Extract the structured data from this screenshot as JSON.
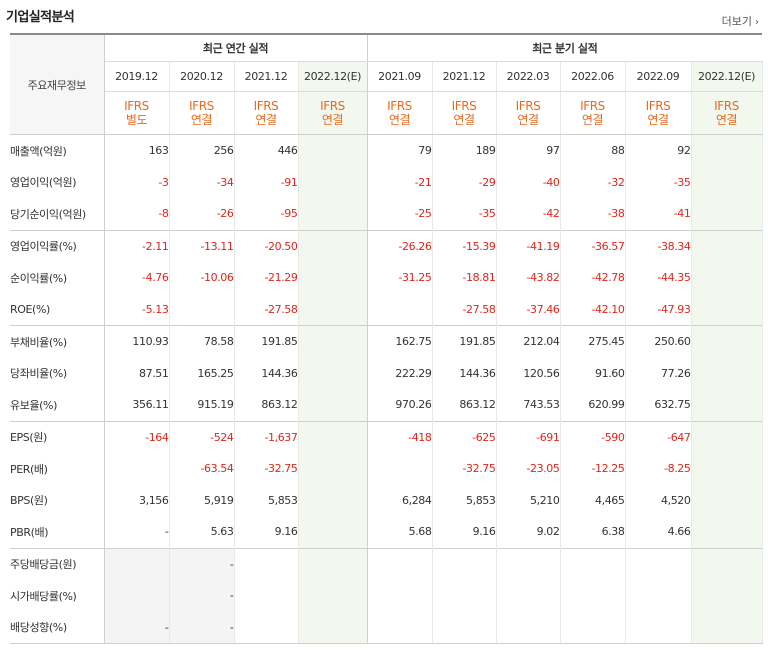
{
  "section_title": "기업실적분석",
  "more_label": "더보기",
  "header": {
    "corner_label": "주요재무정보",
    "annual_title": "최근 연간 실적",
    "quarterly_title": "최근 분기 실적",
    "periods": [
      "2019.12",
      "2020.12",
      "2021.12",
      "2022.12(E)",
      "2021.09",
      "2021.12",
      "2022.03",
      "2022.06",
      "2022.09",
      "2022.12(E)"
    ],
    "ifrs_top": [
      "IFRS",
      "IFRS",
      "IFRS",
      "IFRS",
      "IFRS",
      "IFRS",
      "IFRS",
      "IFRS",
      "IFRS",
      "IFRS"
    ],
    "ifrs_bottom": [
      "별도",
      "연결",
      "연결",
      "연결",
      "연결",
      "연결",
      "연결",
      "연결",
      "연결",
      "연결"
    ]
  },
  "rows": [
    {
      "label": "매출액(억원)",
      "values": [
        "163",
        "256",
        "446",
        "",
        "79",
        "189",
        "97",
        "88",
        "92",
        ""
      ]
    },
    {
      "label": "영업이익(억원)",
      "values": [
        "-3",
        "-34",
        "-91",
        "",
        "-21",
        "-29",
        "-40",
        "-32",
        "-35",
        ""
      ]
    },
    {
      "label": "당기순이익(억원)",
      "values": [
        "-8",
        "-26",
        "-95",
        "",
        "-25",
        "-35",
        "-42",
        "-38",
        "-41",
        ""
      ]
    },
    {
      "label": "영업이익률(%)",
      "values": [
        "-2.11",
        "-13.11",
        "-20.50",
        "",
        "-26.26",
        "-15.39",
        "-41.19",
        "-36.57",
        "-38.34",
        ""
      ]
    },
    {
      "label": "순이익률(%)",
      "values": [
        "-4.76",
        "-10.06",
        "-21.29",
        "",
        "-31.25",
        "-18.81",
        "-43.82",
        "-42.78",
        "-44.35",
        ""
      ]
    },
    {
      "label": "ROE(%)",
      "values": [
        "-5.13",
        "",
        "-27.58",
        "",
        "",
        "-27.58",
        "-37.46",
        "-42.10",
        "-47.93",
        ""
      ]
    },
    {
      "label": "부채비율(%)",
      "values": [
        "110.93",
        "78.58",
        "191.85",
        "",
        "162.75",
        "191.85",
        "212.04",
        "275.45",
        "250.60",
        ""
      ]
    },
    {
      "label": "당좌비율(%)",
      "values": [
        "87.51",
        "165.25",
        "144.36",
        "",
        "222.29",
        "144.36",
        "120.56",
        "91.60",
        "77.26",
        ""
      ]
    },
    {
      "label": "유보율(%)",
      "values": [
        "356.11",
        "915.19",
        "863.12",
        "",
        "970.26",
        "863.12",
        "743.53",
        "620.99",
        "632.75",
        ""
      ]
    },
    {
      "label": "EPS(원)",
      "values": [
        "-164",
        "-524",
        "-1,637",
        "",
        "-418",
        "-625",
        "-691",
        "-590",
        "-647",
        ""
      ]
    },
    {
      "label": "PER(배)",
      "values": [
        "",
        "-63.54",
        "-32.75",
        "",
        "",
        "-32.75",
        "-23.05",
        "-12.25",
        "-8.25",
        ""
      ]
    },
    {
      "label": "BPS(원)",
      "values": [
        "3,156",
        "5,919",
        "5,853",
        "",
        "6,284",
        "5,853",
        "5,210",
        "4,465",
        "4,520",
        ""
      ]
    },
    {
      "label": "PBR(배)",
      "values": [
        "-",
        "5.63",
        "9.16",
        "",
        "5.68",
        "9.16",
        "9.02",
        "6.38",
        "4.66",
        ""
      ]
    },
    {
      "label": "주당배당금(원)",
      "values": [
        "",
        "-",
        "",
        "",
        "",
        "",
        "",
        "",
        "",
        ""
      ]
    },
    {
      "label": "시가배당률(%)",
      "values": [
        "",
        "-",
        "",
        "",
        "",
        "",
        "",
        "",
        "",
        ""
      ]
    },
    {
      "label": "배당성향(%)",
      "values": [
        "-",
        "-",
        "",
        "",
        "",
        "",
        "",
        "",
        "",
        ""
      ]
    }
  ],
  "colors": {
    "negative": "#e0251b",
    "ifrs": "#e96a1e",
    "estimate_bg": "#f2f8ee"
  }
}
